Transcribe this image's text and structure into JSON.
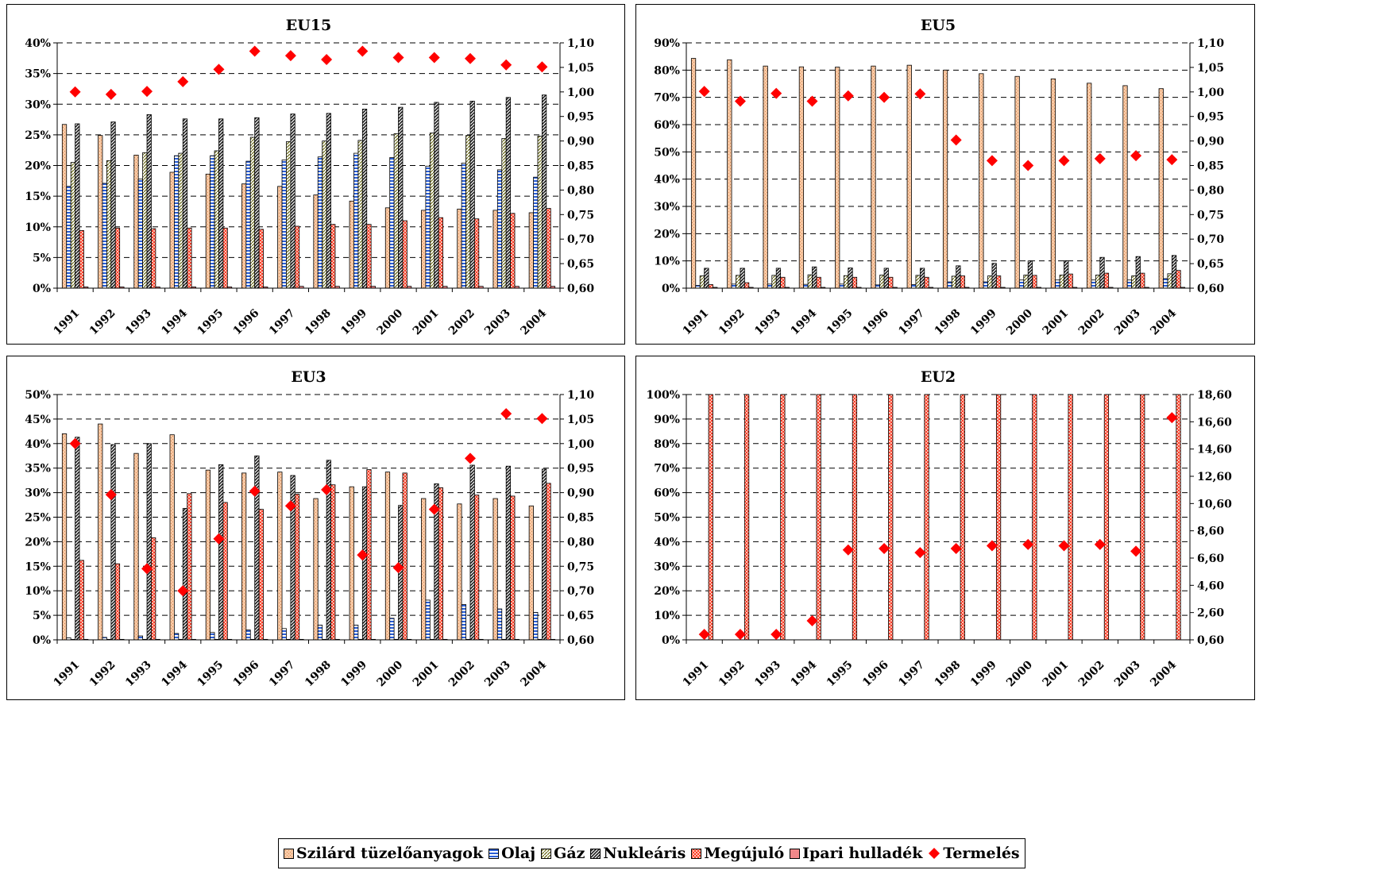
{
  "series_styles": [
    {
      "fill": "#f9c9a4",
      "pattern": "dots"
    },
    {
      "fill": "#ffffff",
      "pattern": "hstripes",
      "stripe": "#2b5fd6"
    },
    {
      "fill": "#ffffff",
      "pattern": "diag",
      "stripe": "#6b6b1a"
    },
    {
      "fill": "#ffffff",
      "pattern": "darkdiag",
      "stripe": "#1a1a1a"
    },
    {
      "fill": "#ff3b2a",
      "pattern": "check",
      "stripe": "#ffc2b0"
    },
    {
      "fill": "#f2888a",
      "pattern": "solid"
    }
  ],
  "marker_color": "#ff0000",
  "legend": {
    "items": [
      {
        "label": "Szilárd tüzelőanyagok"
      },
      {
        "label": "Olaj"
      },
      {
        "label": "Gáz"
      },
      {
        "label": "Nukleáris"
      },
      {
        "label": "Megújuló"
      },
      {
        "label": "Ipari hulladék"
      },
      {
        "label": "Termelés"
      }
    ]
  },
  "chart_data": [
    {
      "type": "bar",
      "title": "EU15",
      "categories": [
        "1991",
        "1992",
        "1993",
        "1994",
        "1995",
        "1996",
        "1997",
        "1998",
        "1999",
        "2000",
        "2001",
        "2002",
        "2003",
        "2004"
      ],
      "ylim": [
        0,
        0.4
      ],
      "yticks": [
        "0%",
        "5%",
        "10%",
        "15%",
        "20%",
        "25%",
        "30%",
        "35%",
        "40%"
      ],
      "y2lim": [
        0.6,
        1.1
      ],
      "y2ticks": [
        "0,60",
        "0,65",
        "0,70",
        "0,75",
        "0,80",
        "0,85",
        "0,90",
        "0,95",
        "1,00",
        "1,05",
        "1,10"
      ],
      "grid": true,
      "series": [
        {
          "name": "Szilárd tüzelőanyagok",
          "values": [
            0.267,
            0.249,
            0.217,
            0.189,
            0.186,
            0.17,
            0.166,
            0.152,
            0.142,
            0.131,
            0.127,
            0.129,
            0.127,
            0.123
          ]
        },
        {
          "name": "Olaj",
          "values": [
            0.166,
            0.171,
            0.178,
            0.216,
            0.216,
            0.207,
            0.209,
            0.214,
            0.22,
            0.213,
            0.199,
            0.204,
            0.193,
            0.181
          ]
        },
        {
          "name": "Gáz",
          "values": [
            0.205,
            0.208,
            0.221,
            0.22,
            0.224,
            0.246,
            0.239,
            0.24,
            0.241,
            0.252,
            0.253,
            0.249,
            0.244,
            0.248
          ]
        },
        {
          "name": "Nukleáris",
          "values": [
            0.268,
            0.271,
            0.283,
            0.276,
            0.276,
            0.278,
            0.284,
            0.285,
            0.292,
            0.295,
            0.303,
            0.305,
            0.311,
            0.315
          ]
        },
        {
          "name": "Megújuló",
          "values": [
            0.094,
            0.098,
            0.097,
            0.098,
            0.098,
            0.096,
            0.101,
            0.104,
            0.104,
            0.11,
            0.115,
            0.113,
            0.122,
            0.13
          ]
        },
        {
          "name": "Ipari hulladék",
          "values": [
            0.002,
            0.002,
            0.002,
            0.002,
            0.002,
            0.002,
            0.003,
            0.003,
            0.003,
            0.003,
            0.003,
            0.003,
            0.003,
            0.003
          ]
        }
      ],
      "line": {
        "name": "Termelés",
        "values": [
          1.0,
          0.995,
          1.001,
          1.021,
          1.046,
          1.083,
          1.074,
          1.066,
          1.083,
          1.07,
          1.07,
          1.068,
          1.055,
          1.051
        ]
      }
    },
    {
      "type": "bar",
      "title": "EU5",
      "categories": [
        "1991",
        "1992",
        "1993",
        "1994",
        "1995",
        "1996",
        "1997",
        "1998",
        "1999",
        "2000",
        "2001",
        "2002",
        "2003",
        "2004"
      ],
      "ylim": [
        0,
        0.9
      ],
      "yticks": [
        "0%",
        "10%",
        "20%",
        "30%",
        "40%",
        "50%",
        "60%",
        "70%",
        "80%",
        "90%"
      ],
      "y2lim": [
        0.6,
        1.1
      ],
      "y2ticks": [
        "0,60",
        "0,65",
        "0,70",
        "0,75",
        "0,80",
        "0,85",
        "0,90",
        "0,95",
        "1,00",
        "1,05",
        "1,10"
      ],
      "grid": true,
      "series": [
        {
          "name": "Szilárd tüzelőanyagok",
          "values": [
            0.843,
            0.838,
            0.815,
            0.812,
            0.811,
            0.815,
            0.818,
            0.8,
            0.787,
            0.777,
            0.768,
            0.752,
            0.743,
            0.732
          ]
        },
        {
          "name": "Olaj",
          "values": [
            0.01,
            0.015,
            0.015,
            0.014,
            0.015,
            0.012,
            0.013,
            0.023,
            0.023,
            0.03,
            0.03,
            0.03,
            0.03,
            0.035
          ]
        },
        {
          "name": "Gáz",
          "values": [
            0.045,
            0.047,
            0.047,
            0.049,
            0.046,
            0.048,
            0.047,
            0.044,
            0.045,
            0.048,
            0.048,
            0.048,
            0.045,
            0.053
          ]
        },
        {
          "name": "Nukleáris",
          "values": [
            0.073,
            0.073,
            0.073,
            0.078,
            0.074,
            0.073,
            0.073,
            0.082,
            0.091,
            0.1,
            0.101,
            0.113,
            0.116,
            0.12
          ]
        },
        {
          "name": "Megújuló",
          "values": [
            0.013,
            0.02,
            0.04,
            0.04,
            0.04,
            0.04,
            0.04,
            0.045,
            0.045,
            0.047,
            0.052,
            0.055,
            0.055,
            0.065
          ]
        },
        {
          "name": "Ipari hulladék",
          "values": [
            0.003,
            0.003,
            0.003,
            0.003,
            0.003,
            0.003,
            0.003,
            0.003,
            0.003,
            0.003,
            0.003,
            0.003,
            0.003,
            0.003
          ]
        }
      ],
      "line": {
        "name": "Termelés",
        "values": [
          1.001,
          0.981,
          0.997,
          0.981,
          0.992,
          0.989,
          0.996,
          0.902,
          0.86,
          0.85,
          0.86,
          0.864,
          0.87,
          0.862
        ]
      }
    },
    {
      "type": "bar",
      "title": "EU3",
      "categories": [
        "1991",
        "1992",
        "1993",
        "1994",
        "1995",
        "1996",
        "1997",
        "1998",
        "1999",
        "2000",
        "2001",
        "2002",
        "2003",
        "2004"
      ],
      "ylim": [
        0,
        0.5
      ],
      "yticks": [
        "0%",
        "5%",
        "10%",
        "15%",
        "20%",
        "25%",
        "30%",
        "35%",
        "40%",
        "45%",
        "50%"
      ],
      "y2lim": [
        0.6,
        1.1
      ],
      "y2ticks": [
        "0,60",
        "0,65",
        "0,70",
        "0,75",
        "0,80",
        "0,85",
        "0,90",
        "0,95",
        "1,00",
        "1,05",
        "1,10"
      ],
      "grid": true,
      "series": [
        {
          "name": "Szilárd tüzelőanyagok",
          "values": [
            0.42,
            0.44,
            0.38,
            0.418,
            0.346,
            0.34,
            0.342,
            0.288,
            0.312,
            0.342,
            0.288,
            0.277,
            0.288,
            0.273
          ]
        },
        {
          "name": "Olaj",
          "values": [
            0.004,
            0.005,
            0.008,
            0.013,
            0.015,
            0.02,
            0.023,
            0.03,
            0.03,
            0.044,
            0.081,
            0.072,
            0.063,
            0.056
          ]
        },
        {
          "name": "Gáz",
          "values": [
            0.001,
            0.001,
            0.001,
            0.001,
            0.001,
            0.001,
            0.001,
            0.001,
            0.001,
            0.001,
            0.001,
            0.001,
            0.001,
            0.001
          ]
        },
        {
          "name": "Nukleáris",
          "values": [
            0.413,
            0.398,
            0.4,
            0.268,
            0.357,
            0.375,
            0.335,
            0.366,
            0.312,
            0.274,
            0.318,
            0.356,
            0.354,
            0.348
          ]
        },
        {
          "name": "Megújuló",
          "values": [
            0.162,
            0.155,
            0.208,
            0.298,
            0.28,
            0.266,
            0.297,
            0.316,
            0.347,
            0.34,
            0.31,
            0.295,
            0.293,
            0.319
          ]
        },
        {
          "name": "Ipari hulladék",
          "values": [
            0.001,
            0.001,
            0.001,
            0.001,
            0.001,
            0.001,
            0.001,
            0.001,
            0.001,
            0.001,
            0.001,
            0.001,
            0.001,
            0.001
          ]
        }
      ],
      "line": {
        "name": "Termelés",
        "values": [
          1.0,
          0.896,
          0.745,
          0.7,
          0.806,
          0.903,
          0.873,
          0.906,
          0.773,
          0.747,
          0.866,
          0.97,
          1.061,
          1.051
        ]
      }
    },
    {
      "type": "bar",
      "title": "EU2",
      "categories": [
        "1991",
        "1992",
        "1993",
        "1994",
        "1995",
        "1996",
        "1997",
        "1998",
        "1999",
        "2000",
        "2001",
        "2002",
        "2003",
        "2004"
      ],
      "ylim": [
        0,
        1.0
      ],
      "yticks": [
        "0%",
        "10%",
        "20%",
        "30%",
        "40%",
        "50%",
        "60%",
        "70%",
        "80%",
        "90%",
        "100%"
      ],
      "y2lim": [
        0.6,
        18.6
      ],
      "y2ticks": [
        "0,60",
        "2,60",
        "4,60",
        "6,60",
        "8,60",
        "10,60",
        "12,60",
        "14,60",
        "16,60",
        "18,60"
      ],
      "grid": true,
      "series": [
        {
          "name": "Szilárd tüzelőanyagok",
          "values": [
            0,
            0,
            0,
            0,
            0,
            0,
            0,
            0,
            0,
            0,
            0,
            0,
            0,
            0
          ]
        },
        {
          "name": "Olaj",
          "values": [
            0,
            0,
            0,
            0,
            0,
            0,
            0,
            0,
            0,
            0,
            0,
            0,
            0,
            0
          ]
        },
        {
          "name": "Gáz",
          "values": [
            0,
            0,
            0,
            0,
            0,
            0,
            0,
            0,
            0,
            0,
            0,
            0,
            0,
            0
          ]
        },
        {
          "name": "Nukleáris",
          "values": [
            0,
            0,
            0,
            0,
            0,
            0,
            0,
            0,
            0,
            0,
            0,
            0,
            0,
            0
          ]
        },
        {
          "name": "Megújuló",
          "values": [
            1,
            1,
            1,
            1,
            1,
            1,
            1,
            1,
            1,
            1,
            1,
            1,
            1,
            1
          ]
        },
        {
          "name": "Ipari hulladék",
          "values": [
            0,
            0,
            0,
            0,
            0,
            0,
            0,
            0,
            0,
            0,
            0,
            0,
            0,
            0
          ]
        }
      ],
      "line": {
        "name": "Termelés",
        "values": [
          1.0,
          1.0,
          1.0,
          2.0,
          7.2,
          7.3,
          7.0,
          7.3,
          7.5,
          7.6,
          7.5,
          7.6,
          7.1,
          16.9
        ]
      }
    }
  ]
}
